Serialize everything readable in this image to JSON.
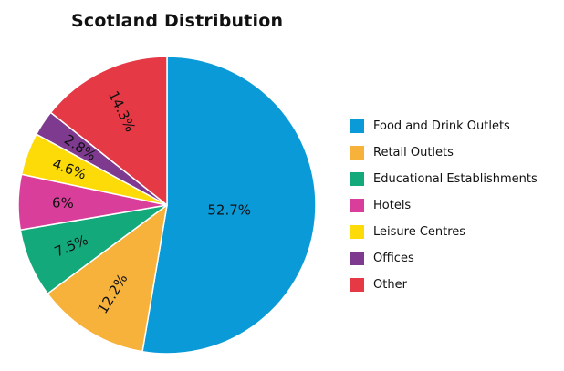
{
  "chart_data": {
    "type": "pie",
    "title": "Scotland Distribution",
    "legend_position": "right",
    "start_angle_deg": 0,
    "direction": "clockwise",
    "slices": [
      {
        "label": "Food and Drink Outlets",
        "value": 52.7,
        "display": "52.7%",
        "color": "#0a9ad7"
      },
      {
        "label": "Retail Outlets",
        "value": 12.2,
        "display": "12.2%",
        "color": "#f7b23b"
      },
      {
        "label": "Educational Establishments",
        "value": 7.5,
        "display": "7.5%",
        "color": "#14a97b"
      },
      {
        "label": "Hotels",
        "value": 6,
        "display": "6%",
        "color": "#d93e9b"
      },
      {
        "label": "Leisure Centres",
        "value": 4.6,
        "display": "4.6%",
        "color": "#fcdb08"
      },
      {
        "label": "Offices",
        "value": 2.8,
        "display": "2.8%",
        "color": "#7d3a8e"
      },
      {
        "label": "Other",
        "value": 14.3,
        "display": "14.3%",
        "color": "#e63946"
      }
    ]
  }
}
